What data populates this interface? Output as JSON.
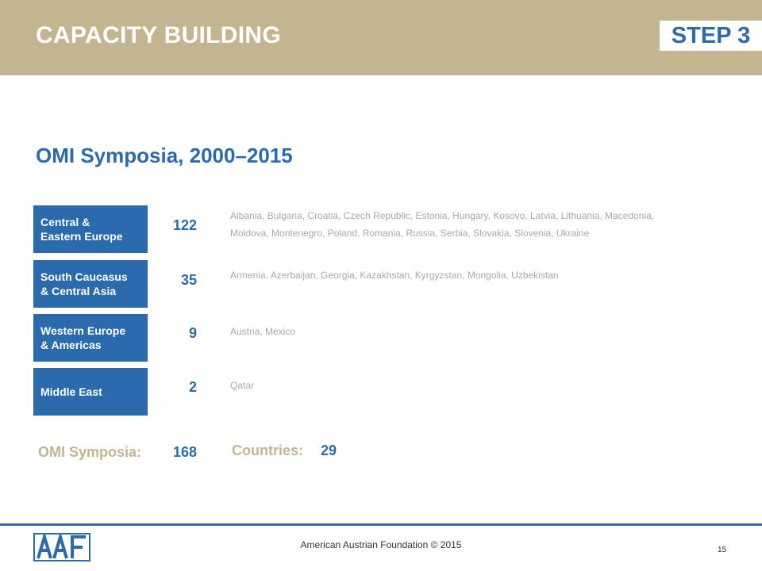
{
  "header": {
    "title": "CAPACITY BUILDING",
    "step": "STEP 3",
    "background_color": "#c2b58f"
  },
  "subtitle": "OMI Symposia, 2000–2015",
  "regions": [
    {
      "name_line1": "Central &",
      "name_line2": "Eastern Europe",
      "count": "122",
      "countries_line1": "Albania, Bulgaria, Croatia, Czech Republic, Estonia, Hungary, Kosovo, Latvia, Lithuania, Macedonia,",
      "countries_line2": "Moldova, Montenegro, Poland, Romania, Russia, Serbia, Slovakia, Slovenia, Ukraine"
    },
    {
      "name_line1": "South Caucasus",
      "name_line2": "& Central Asia",
      "count": "35",
      "countries_line1": "Armenia, Azerbaijan, Georgia, Kazakhstan, Kyrgyzstan, Mongolia, Uzbekistan"
    },
    {
      "name_line1": "Western Europe",
      "name_line2": "& Americas",
      "count": "9",
      "countries_line1": "Austria, Mexico"
    },
    {
      "name_line1": "Middle East",
      "count": "2",
      "countries_line1": "Qatar"
    }
  ],
  "totals": {
    "symposia_label": "OMI Symposia:",
    "symposia_value": "168",
    "countries_label": "Countries:",
    "countries_value": "29"
  },
  "footer": {
    "logo_text": "AAF",
    "copyright": "American Austrian Foundation © 2015",
    "page_number": "15"
  },
  "colors": {
    "accent_blue": "#2b6aad",
    "tan": "#c2b58f",
    "muted_text": "#a9a9a9"
  }
}
